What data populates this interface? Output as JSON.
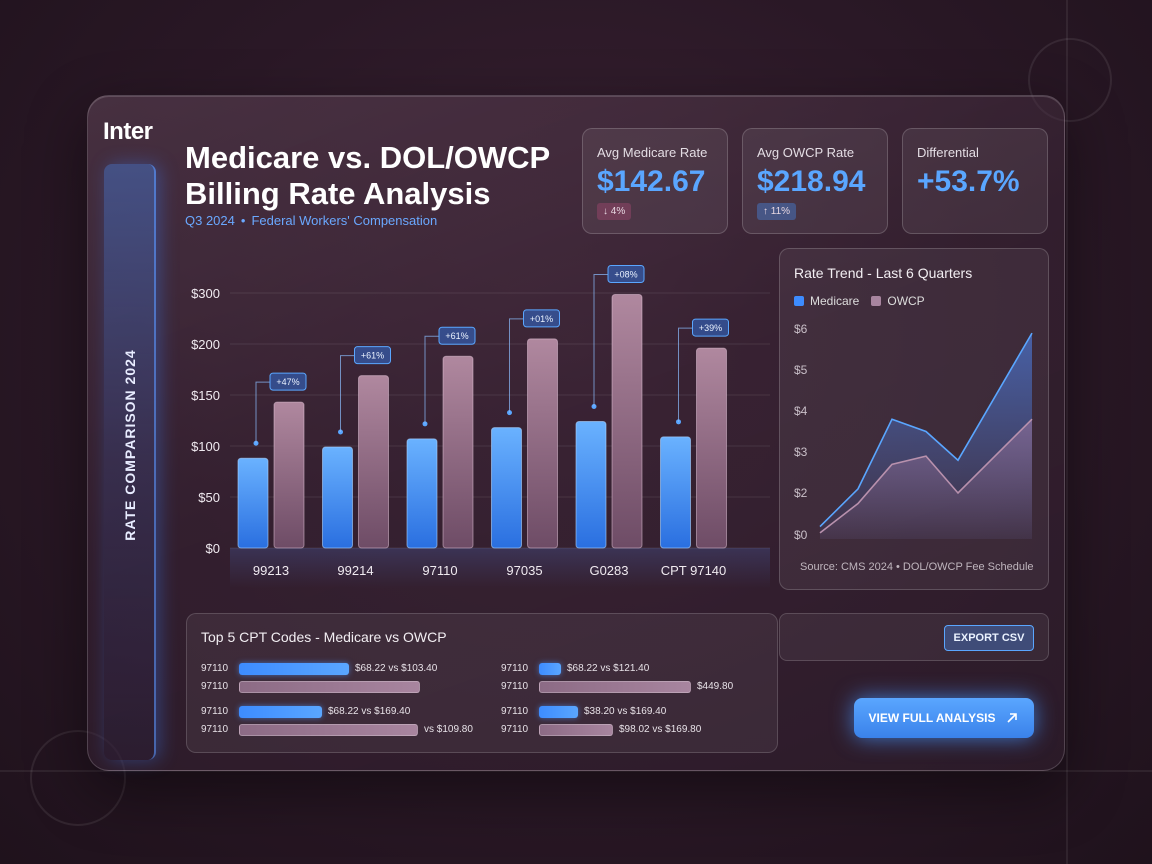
{
  "brand": "Inter",
  "sidebar": {
    "label": "RATE COMPARISON 2024"
  },
  "header": {
    "title": "Medicare vs. DOL/OWCP Billing Rate Analysis",
    "period": "Q3 2024",
    "context": "Federal Workers' Compensation"
  },
  "kpis": [
    {
      "label": "Avg Medicare Rate",
      "value": "$142.67",
      "badge": "↓ 4%"
    },
    {
      "label": "Avg OWCP Rate",
      "value": "$218.94",
      "badge": "↑ 11%"
    },
    {
      "label": "Differential",
      "value": "+53.7%"
    }
  ],
  "chart_data": [
    {
      "type": "bar",
      "categories": [
        "99213",
        "99214",
        "97110",
        "97035",
        "G0283",
        "CPT 97140"
      ],
      "series": [
        {
          "values": [
            88,
            99,
            107,
            118,
            124,
            109
          ]
        },
        {
          "values": [
            143,
            169,
            188,
            210,
            297,
            196
          ]
        }
      ],
      "data_labels": [
        "+47%",
        "+61%",
        "+61%",
        "+01%",
        "+08%",
        "+39%"
      ],
      "yticks": [
        "$0",
        "$50",
        "$100",
        "$150",
        "$200",
        "$300"
      ],
      "ylim": [
        0,
        300
      ]
    },
    {
      "type": "line",
      "title": "Rate Trend - Last 6 Quarters",
      "x": [
        1,
        2,
        3,
        4,
        5,
        6
      ],
      "series": [
        {
          "name": "Medicare",
          "values": [
            0.4,
            2.1,
            3.8,
            3.5,
            2.8,
            5.9
          ]
        },
        {
          "name": "OWCP",
          "values": [
            0.1,
            1.5,
            2.7,
            2.9,
            2.0,
            3.8
          ]
        }
      ],
      "yticks": [
        "$0",
        "$2",
        "$3",
        "$4",
        "$5",
        "$6"
      ],
      "ylim": [
        0,
        6
      ]
    }
  ],
  "trend_panel": {
    "source": "Source: CMS 2024 • DOL/OWCP Fee Schedule"
  },
  "table": {
    "title": "Top 5 CPT Codes - Medicare vs OWCP",
    "rows": [
      {
        "code": "97110",
        "kind": "m",
        "fill": 0.45,
        "text": "$68.22 vs $103.40"
      },
      {
        "code": "97110",
        "kind": "o",
        "fill": 0.74,
        "text": ""
      },
      {
        "code": "97110",
        "kind": "m",
        "fill": 0.34,
        "text": "$68.22 vs $169.40"
      },
      {
        "code": "97110",
        "kind": "o",
        "fill": 0.73,
        "text": "vs $109.80"
      },
      {
        "code": "97110",
        "kind": "m",
        "fill": 0.09,
        "text": "$68.22 vs $121.40"
      },
      {
        "code": "97110",
        "kind": "o",
        "fill": 0.62,
        "text": "$449.80"
      },
      {
        "code": "97110",
        "kind": "m",
        "fill": 0.16,
        "text": "$38.20 vs $169.40"
      },
      {
        "code": "97110",
        "kind": "o",
        "fill": 0.3,
        "text": "$98.02 vs $169.80"
      }
    ]
  },
  "actions": {
    "export": "EXPORT CSV",
    "view_full": "VIEW FULL ANALYSIS"
  },
  "colors": {
    "medicare": "#3d8cff",
    "owcp": "#a8859f",
    "accent": "#5aa6ff"
  }
}
